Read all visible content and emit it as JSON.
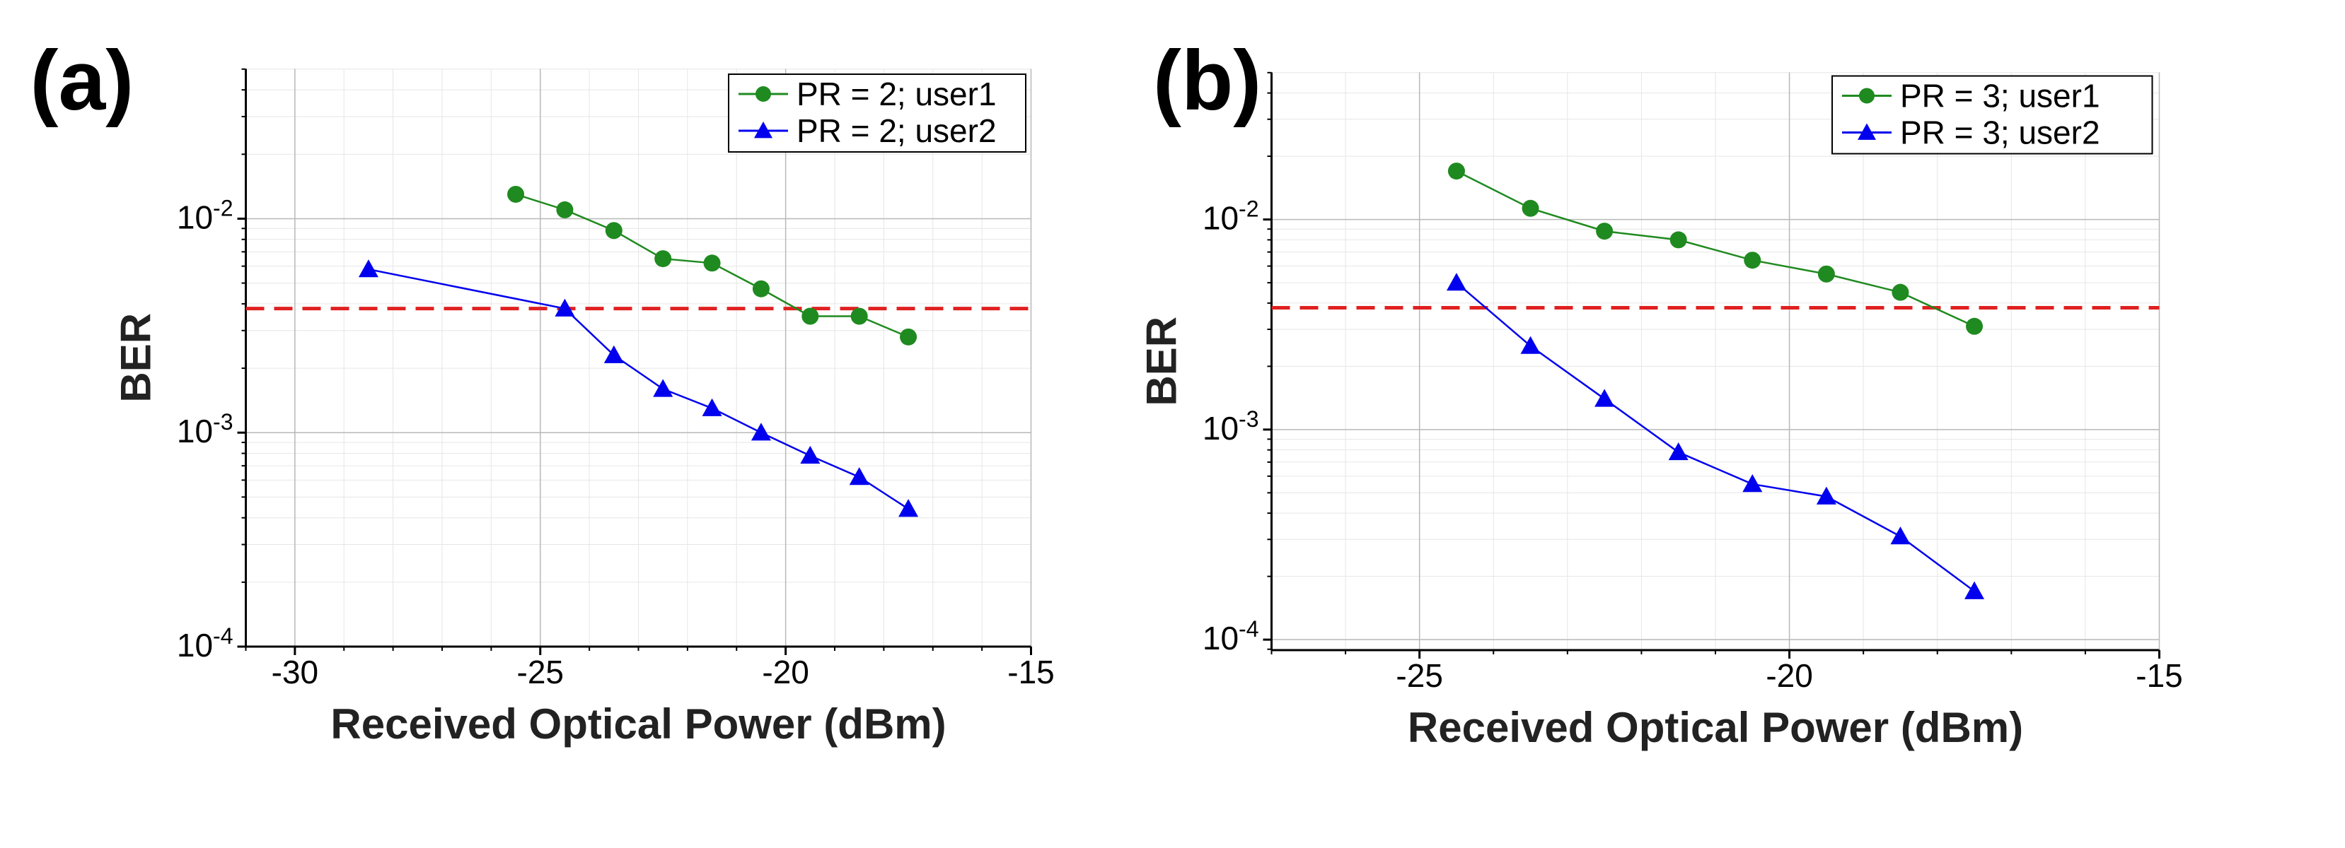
{
  "chart_data": [
    {
      "panel_label": "(a)",
      "type": "line",
      "xlabel": "Received Optical Power (dBm)",
      "ylabel": "BER",
      "yscale": "log",
      "xlim": [
        -31,
        -15
      ],
      "ylim_exp": [
        -4,
        -1.3
      ],
      "x_ticks": [
        {
          "v": -30,
          "label": "-30"
        },
        {
          "v": -25,
          "label": "-25"
        },
        {
          "v": -20,
          "label": "-20"
        },
        {
          "v": -15,
          "label": "-15"
        }
      ],
      "y_ticks": [
        {
          "e": -4,
          "base": "10",
          "exp": "-4"
        },
        {
          "e": -3,
          "base": "10",
          "exp": "-3"
        },
        {
          "e": -2,
          "base": "10",
          "exp": "-2"
        }
      ],
      "threshold": 0.0038,
      "series": [
        {
          "name": "PR = 2; user1",
          "color": "#1f8a1f",
          "marker": "circle",
          "x": [
            -25.5,
            -24.5,
            -23.5,
            -22.5,
            -21.5,
            -20.5,
            -19.5,
            -18.5,
            -17.5
          ],
          "y": [
            0.013,
            0.011,
            0.0088,
            0.0065,
            0.0062,
            0.0047,
            0.0035,
            0.0035,
            0.0028
          ]
        },
        {
          "name": "PR = 2; user2",
          "color": "#0000ee",
          "marker": "triangle",
          "x": [
            -28.5,
            -24.5,
            -23.5,
            -22.5,
            -21.5,
            -20.5,
            -19.5,
            -18.5,
            -17.5
          ],
          "y": [
            0.0058,
            0.0038,
            0.0023,
            0.0016,
            0.0013,
            0.001,
            0.00078,
            0.00062,
            0.00044
          ]
        }
      ]
    },
    {
      "panel_label": "(b)",
      "type": "line",
      "xlabel": "Received Optical Power (dBm)",
      "ylabel": "BER",
      "yscale": "log",
      "xlim": [
        -27,
        -15
      ],
      "ylim_exp": [
        -4.05,
        -1.3
      ],
      "x_ticks": [
        {
          "v": -25,
          "label": "-25"
        },
        {
          "v": -20,
          "label": "-20"
        },
        {
          "v": -15,
          "label": "-15"
        }
      ],
      "y_ticks": [
        {
          "e": -4,
          "base": "10",
          "exp": "-4"
        },
        {
          "e": -3,
          "base": "10",
          "exp": "-3"
        },
        {
          "e": -2,
          "base": "10",
          "exp": "-2"
        }
      ],
      "threshold": 0.0038,
      "series": [
        {
          "name": "PR = 3; user1",
          "color": "#1f8a1f",
          "marker": "circle",
          "x": [
            -24.5,
            -23.5,
            -22.5,
            -21.5,
            -20.5,
            -19.5,
            -18.5,
            -17.5
          ],
          "y": [
            0.017,
            0.0113,
            0.0088,
            0.008,
            0.0064,
            0.0055,
            0.0045,
            0.0031
          ]
        },
        {
          "name": "PR = 3; user2",
          "color": "#0000ee",
          "marker": "triangle",
          "x": [
            -24.5,
            -23.5,
            -22.5,
            -21.5,
            -20.5,
            -19.5,
            -18.5,
            -17.5
          ],
          "y": [
            0.005,
            0.0025,
            0.0014,
            0.00078,
            0.00055,
            0.00048,
            0.00031,
            0.00017
          ]
        }
      ]
    }
  ]
}
